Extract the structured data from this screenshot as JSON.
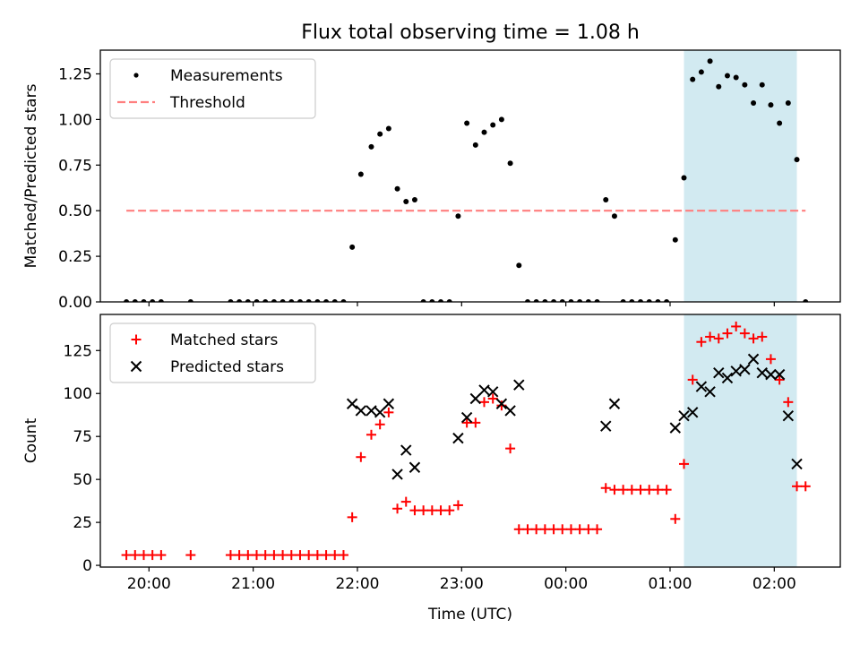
{
  "figure": {
    "title": "Flux total observing time = 1.08 h"
  },
  "chart_data": [
    {
      "type": "scatter",
      "panel": "top",
      "ylabel": "Matched/Predicted stars",
      "ylim": [
        0,
        1.38
      ],
      "yticks": [
        0.0,
        0.25,
        0.5,
        0.75,
        1.0,
        1.25
      ],
      "ytick_labels": [
        "0.00",
        "0.25",
        "0.50",
        "0.75",
        "1.00",
        "1.25"
      ],
      "xlim": [
        "19:32",
        "02:38"
      ],
      "xticks": [
        "20:00",
        "21:00",
        "22:00",
        "23:00",
        "00:00",
        "01:00",
        "02:00"
      ],
      "highlight_span": [
        "01:08",
        "02:13"
      ],
      "highlight_color": "#add8e6",
      "legend": "top-left",
      "series": [
        {
          "name": "Measurements",
          "marker": "dot",
          "color": "#000000",
          "points": [
            [
              "19:47",
              0.0
            ],
            [
              "19:52",
              0.0
            ],
            [
              "19:57",
              0.0
            ],
            [
              "20:02",
              0.0
            ],
            [
              "20:07",
              0.0
            ],
            [
              "20:24",
              0.0
            ],
            [
              "20:47",
              0.0
            ],
            [
              "20:52",
              0.0
            ],
            [
              "20:57",
              0.0
            ],
            [
              "21:02",
              0.0
            ],
            [
              "21:07",
              0.0
            ],
            [
              "21:12",
              0.0
            ],
            [
              "21:17",
              0.0
            ],
            [
              "21:22",
              0.0
            ],
            [
              "21:27",
              0.0
            ],
            [
              "21:32",
              0.0
            ],
            [
              "21:37",
              0.0
            ],
            [
              "21:42",
              0.0
            ],
            [
              "21:47",
              0.0
            ],
            [
              "21:52",
              0.0
            ],
            [
              "21:57",
              0.3
            ],
            [
              "22:02",
              0.7
            ],
            [
              "22:08",
              0.85
            ],
            [
              "22:13",
              0.92
            ],
            [
              "22:18",
              0.95
            ],
            [
              "22:23",
              0.62
            ],
            [
              "22:28",
              0.55
            ],
            [
              "22:33",
              0.56
            ],
            [
              "22:38",
              0.0
            ],
            [
              "22:43",
              0.0
            ],
            [
              "22:48",
              0.0
            ],
            [
              "22:53",
              0.0
            ],
            [
              "22:58",
              0.47
            ],
            [
              "23:03",
              0.98
            ],
            [
              "23:08",
              0.86
            ],
            [
              "23:13",
              0.93
            ],
            [
              "23:18",
              0.97
            ],
            [
              "23:23",
              1.0
            ],
            [
              "23:28",
              0.76
            ],
            [
              "23:33",
              0.2
            ],
            [
              "23:38",
              0.0
            ],
            [
              "23:43",
              0.0
            ],
            [
              "23:48",
              0.0
            ],
            [
              "23:53",
              0.0
            ],
            [
              "23:58",
              0.0
            ],
            [
              "00:03",
              0.0
            ],
            [
              "00:08",
              0.0
            ],
            [
              "00:13",
              0.0
            ],
            [
              "00:18",
              0.0
            ],
            [
              "00:23",
              0.56
            ],
            [
              "00:28",
              0.47
            ],
            [
              "00:33",
              0.0
            ],
            [
              "00:38",
              0.0
            ],
            [
              "00:43",
              0.0
            ],
            [
              "00:48",
              0.0
            ],
            [
              "00:53",
              0.0
            ],
            [
              "00:58",
              0.0
            ],
            [
              "01:03",
              0.34
            ],
            [
              "01:08",
              0.68
            ],
            [
              "01:13",
              1.22
            ],
            [
              "01:18",
              1.26
            ],
            [
              "01:23",
              1.32
            ],
            [
              "01:28",
              1.18
            ],
            [
              "01:33",
              1.24
            ],
            [
              "01:38",
              1.23
            ],
            [
              "01:43",
              1.19
            ],
            [
              "01:48",
              1.09
            ],
            [
              "01:53",
              1.19
            ],
            [
              "01:58",
              1.08
            ],
            [
              "02:03",
              0.98
            ],
            [
              "02:08",
              1.09
            ],
            [
              "02:13",
              0.78
            ],
            [
              "02:18",
              0.0
            ]
          ]
        },
        {
          "name": "Threshold",
          "marker": "dashed-line",
          "color": "#ff7f7f",
          "points": [
            [
              "19:47",
              0.5
            ],
            [
              "02:18",
              0.5
            ]
          ]
        }
      ]
    },
    {
      "type": "scatter",
      "panel": "bottom",
      "xlabel": "Time (UTC)",
      "ylabel": "Count",
      "ylim": [
        -1,
        146
      ],
      "yticks": [
        0,
        25,
        50,
        75,
        100,
        125
      ],
      "ytick_labels": [
        "0",
        "25",
        "50",
        "75",
        "100",
        "125"
      ],
      "xlim": [
        "19:32",
        "02:38"
      ],
      "xticks": [
        "20:00",
        "21:00",
        "22:00",
        "23:00",
        "00:00",
        "01:00",
        "02:00"
      ],
      "xtick_labels": [
        "20:00",
        "21:00",
        "22:00",
        "23:00",
        "00:00",
        "01:00",
        "02:00"
      ],
      "highlight_span": [
        "01:08",
        "02:13"
      ],
      "highlight_color": "#add8e6",
      "legend": "top-left",
      "series": [
        {
          "name": "Matched stars",
          "marker": "plus",
          "color": "#ff0000",
          "points": [
            [
              "19:47",
              6
            ],
            [
              "19:52",
              6
            ],
            [
              "19:57",
              6
            ],
            [
              "20:02",
              6
            ],
            [
              "20:07",
              6
            ],
            [
              "20:24",
              6
            ],
            [
              "20:47",
              6
            ],
            [
              "20:52",
              6
            ],
            [
              "20:57",
              6
            ],
            [
              "21:02",
              6
            ],
            [
              "21:07",
              6
            ],
            [
              "21:12",
              6
            ],
            [
              "21:17",
              6
            ],
            [
              "21:22",
              6
            ],
            [
              "21:27",
              6
            ],
            [
              "21:32",
              6
            ],
            [
              "21:37",
              6
            ],
            [
              "21:42",
              6
            ],
            [
              "21:47",
              6
            ],
            [
              "21:52",
              6
            ],
            [
              "21:57",
              28
            ],
            [
              "22:02",
              63
            ],
            [
              "22:08",
              76
            ],
            [
              "22:13",
              82
            ],
            [
              "22:18",
              89
            ],
            [
              "22:23",
              33
            ],
            [
              "22:28",
              37
            ],
            [
              "22:33",
              32
            ],
            [
              "22:38",
              32
            ],
            [
              "22:43",
              32
            ],
            [
              "22:48",
              32
            ],
            [
              "22:53",
              32
            ],
            [
              "22:58",
              35
            ],
            [
              "23:03",
              83
            ],
            [
              "23:08",
              83
            ],
            [
              "23:13",
              95
            ],
            [
              "23:18",
              97
            ],
            [
              "23:23",
              93
            ],
            [
              "23:28",
              68
            ],
            [
              "23:33",
              21
            ],
            [
              "23:38",
              21
            ],
            [
              "23:43",
              21
            ],
            [
              "23:48",
              21
            ],
            [
              "23:53",
              21
            ],
            [
              "23:58",
              21
            ],
            [
              "00:03",
              21
            ],
            [
              "00:08",
              21
            ],
            [
              "00:13",
              21
            ],
            [
              "00:18",
              21
            ],
            [
              "00:23",
              45
            ],
            [
              "00:28",
              44
            ],
            [
              "00:33",
              44
            ],
            [
              "00:38",
              44
            ],
            [
              "00:43",
              44
            ],
            [
              "00:48",
              44
            ],
            [
              "00:53",
              44
            ],
            [
              "00:58",
              44
            ],
            [
              "01:03",
              27
            ],
            [
              "01:08",
              59
            ],
            [
              "01:13",
              108
            ],
            [
              "01:18",
              130
            ],
            [
              "01:23",
              133
            ],
            [
              "01:28",
              132
            ],
            [
              "01:33",
              135
            ],
            [
              "01:38",
              139
            ],
            [
              "01:43",
              135
            ],
            [
              "01:48",
              132
            ],
            [
              "01:53",
              133
            ],
            [
              "01:58",
              120
            ],
            [
              "02:03",
              108
            ],
            [
              "02:08",
              95
            ],
            [
              "02:13",
              46
            ],
            [
              "02:18",
              46
            ]
          ]
        },
        {
          "name": "Predicted stars",
          "marker": "x",
          "color": "#000000",
          "points": [
            [
              "21:57",
              94
            ],
            [
              "22:02",
              90
            ],
            [
              "22:08",
              90
            ],
            [
              "22:13",
              89
            ],
            [
              "22:18",
              94
            ],
            [
              "22:23",
              53
            ],
            [
              "22:28",
              67
            ],
            [
              "22:33",
              57
            ],
            [
              "22:58",
              74
            ],
            [
              "23:03",
              86
            ],
            [
              "23:08",
              97
            ],
            [
              "23:13",
              102
            ],
            [
              "23:18",
              101
            ],
            [
              "23:23",
              94
            ],
            [
              "23:28",
              90
            ],
            [
              "23:33",
              105
            ],
            [
              "00:23",
              81
            ],
            [
              "00:28",
              94
            ],
            [
              "01:03",
              80
            ],
            [
              "01:08",
              87
            ],
            [
              "01:13",
              89
            ],
            [
              "01:18",
              104
            ],
            [
              "01:23",
              101
            ],
            [
              "01:28",
              112
            ],
            [
              "01:33",
              109
            ],
            [
              "01:38",
              113
            ],
            [
              "01:43",
              114
            ],
            [
              "01:48",
              120
            ],
            [
              "01:53",
              112
            ],
            [
              "01:58",
              111
            ],
            [
              "02:03",
              111
            ],
            [
              "02:08",
              87
            ],
            [
              "02:13",
              59
            ]
          ]
        }
      ]
    }
  ]
}
